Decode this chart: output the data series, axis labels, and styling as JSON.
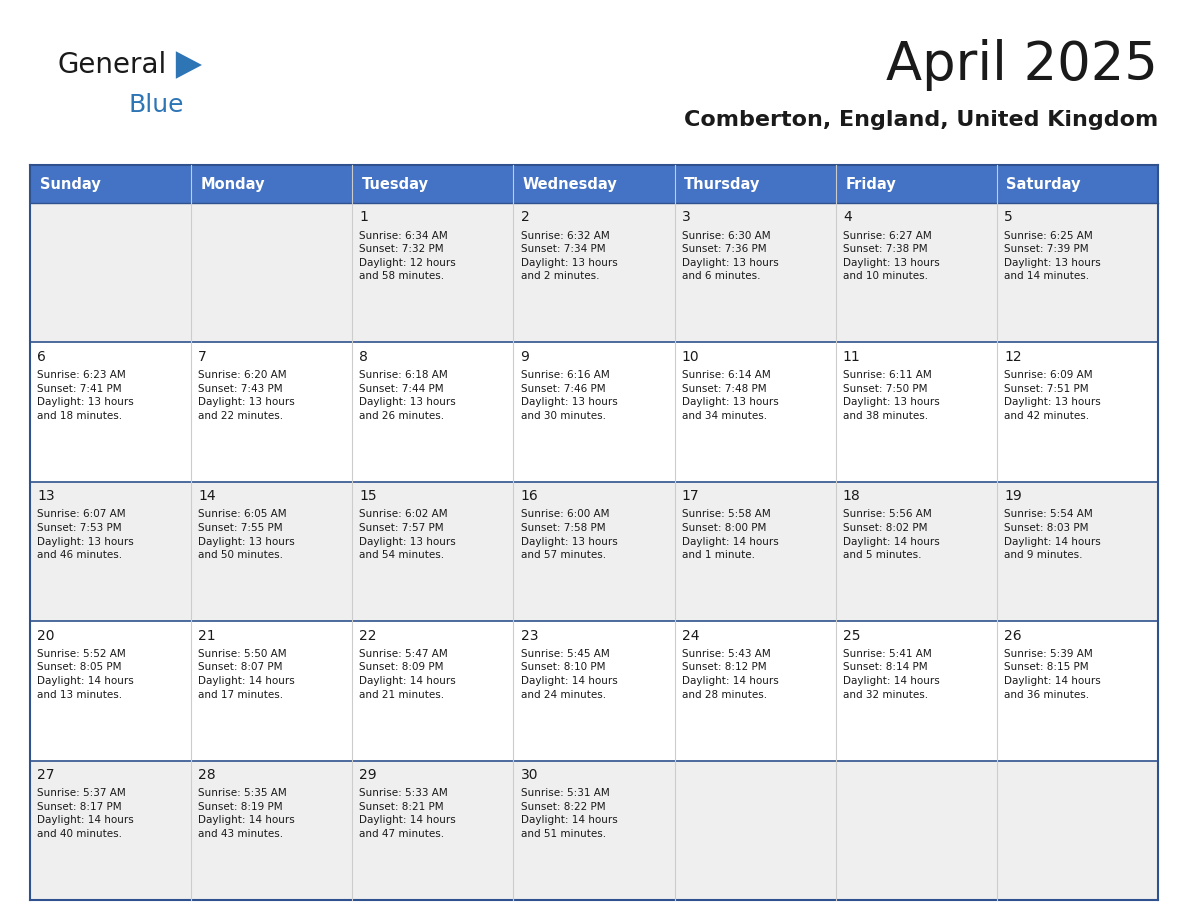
{
  "title": "April 2025",
  "subtitle": "Comberton, England, United Kingdom",
  "header_color": "#4472C4",
  "header_text_color": "#FFFFFF",
  "row_bg_colors": [
    "#EFEFEF",
    "#FFFFFF",
    "#EFEFEF",
    "#FFFFFF",
    "#EFEFEF"
  ],
  "border_color": "#2F528F",
  "grid_color": "#CCCCCC",
  "day_names": [
    "Sunday",
    "Monday",
    "Tuesday",
    "Wednesday",
    "Thursday",
    "Friday",
    "Saturday"
  ],
  "weeks": [
    [
      {
        "day": "",
        "text": ""
      },
      {
        "day": "",
        "text": ""
      },
      {
        "day": "1",
        "text": "Sunrise: 6:34 AM\nSunset: 7:32 PM\nDaylight: 12 hours\nand 58 minutes."
      },
      {
        "day": "2",
        "text": "Sunrise: 6:32 AM\nSunset: 7:34 PM\nDaylight: 13 hours\nand 2 minutes."
      },
      {
        "day": "3",
        "text": "Sunrise: 6:30 AM\nSunset: 7:36 PM\nDaylight: 13 hours\nand 6 minutes."
      },
      {
        "day": "4",
        "text": "Sunrise: 6:27 AM\nSunset: 7:38 PM\nDaylight: 13 hours\nand 10 minutes."
      },
      {
        "day": "5",
        "text": "Sunrise: 6:25 AM\nSunset: 7:39 PM\nDaylight: 13 hours\nand 14 minutes."
      }
    ],
    [
      {
        "day": "6",
        "text": "Sunrise: 6:23 AM\nSunset: 7:41 PM\nDaylight: 13 hours\nand 18 minutes."
      },
      {
        "day": "7",
        "text": "Sunrise: 6:20 AM\nSunset: 7:43 PM\nDaylight: 13 hours\nand 22 minutes."
      },
      {
        "day": "8",
        "text": "Sunrise: 6:18 AM\nSunset: 7:44 PM\nDaylight: 13 hours\nand 26 minutes."
      },
      {
        "day": "9",
        "text": "Sunrise: 6:16 AM\nSunset: 7:46 PM\nDaylight: 13 hours\nand 30 minutes."
      },
      {
        "day": "10",
        "text": "Sunrise: 6:14 AM\nSunset: 7:48 PM\nDaylight: 13 hours\nand 34 minutes."
      },
      {
        "day": "11",
        "text": "Sunrise: 6:11 AM\nSunset: 7:50 PM\nDaylight: 13 hours\nand 38 minutes."
      },
      {
        "day": "12",
        "text": "Sunrise: 6:09 AM\nSunset: 7:51 PM\nDaylight: 13 hours\nand 42 minutes."
      }
    ],
    [
      {
        "day": "13",
        "text": "Sunrise: 6:07 AM\nSunset: 7:53 PM\nDaylight: 13 hours\nand 46 minutes."
      },
      {
        "day": "14",
        "text": "Sunrise: 6:05 AM\nSunset: 7:55 PM\nDaylight: 13 hours\nand 50 minutes."
      },
      {
        "day": "15",
        "text": "Sunrise: 6:02 AM\nSunset: 7:57 PM\nDaylight: 13 hours\nand 54 minutes."
      },
      {
        "day": "16",
        "text": "Sunrise: 6:00 AM\nSunset: 7:58 PM\nDaylight: 13 hours\nand 57 minutes."
      },
      {
        "day": "17",
        "text": "Sunrise: 5:58 AM\nSunset: 8:00 PM\nDaylight: 14 hours\nand 1 minute."
      },
      {
        "day": "18",
        "text": "Sunrise: 5:56 AM\nSunset: 8:02 PM\nDaylight: 14 hours\nand 5 minutes."
      },
      {
        "day": "19",
        "text": "Sunrise: 5:54 AM\nSunset: 8:03 PM\nDaylight: 14 hours\nand 9 minutes."
      }
    ],
    [
      {
        "day": "20",
        "text": "Sunrise: 5:52 AM\nSunset: 8:05 PM\nDaylight: 14 hours\nand 13 minutes."
      },
      {
        "day": "21",
        "text": "Sunrise: 5:50 AM\nSunset: 8:07 PM\nDaylight: 14 hours\nand 17 minutes."
      },
      {
        "day": "22",
        "text": "Sunrise: 5:47 AM\nSunset: 8:09 PM\nDaylight: 14 hours\nand 21 minutes."
      },
      {
        "day": "23",
        "text": "Sunrise: 5:45 AM\nSunset: 8:10 PM\nDaylight: 14 hours\nand 24 minutes."
      },
      {
        "day": "24",
        "text": "Sunrise: 5:43 AM\nSunset: 8:12 PM\nDaylight: 14 hours\nand 28 minutes."
      },
      {
        "day": "25",
        "text": "Sunrise: 5:41 AM\nSunset: 8:14 PM\nDaylight: 14 hours\nand 32 minutes."
      },
      {
        "day": "26",
        "text": "Sunrise: 5:39 AM\nSunset: 8:15 PM\nDaylight: 14 hours\nand 36 minutes."
      }
    ],
    [
      {
        "day": "27",
        "text": "Sunrise: 5:37 AM\nSunset: 8:17 PM\nDaylight: 14 hours\nand 40 minutes."
      },
      {
        "day": "28",
        "text": "Sunrise: 5:35 AM\nSunset: 8:19 PM\nDaylight: 14 hours\nand 43 minutes."
      },
      {
        "day": "29",
        "text": "Sunrise: 5:33 AM\nSunset: 8:21 PM\nDaylight: 14 hours\nand 47 minutes."
      },
      {
        "day": "30",
        "text": "Sunrise: 5:31 AM\nSunset: 8:22 PM\nDaylight: 14 hours\nand 51 minutes."
      },
      {
        "day": "",
        "text": ""
      },
      {
        "day": "",
        "text": ""
      },
      {
        "day": "",
        "text": ""
      }
    ]
  ],
  "logo_text_general": "General",
  "logo_text_blue": "Blue",
  "logo_color_general": "#1a1a1a",
  "logo_color_blue": "#2E75B6",
  "logo_triangle_color": "#2E75B6",
  "title_color": "#1a1a1a",
  "subtitle_color": "#1a1a1a",
  "text_color": "#1a1a1a"
}
